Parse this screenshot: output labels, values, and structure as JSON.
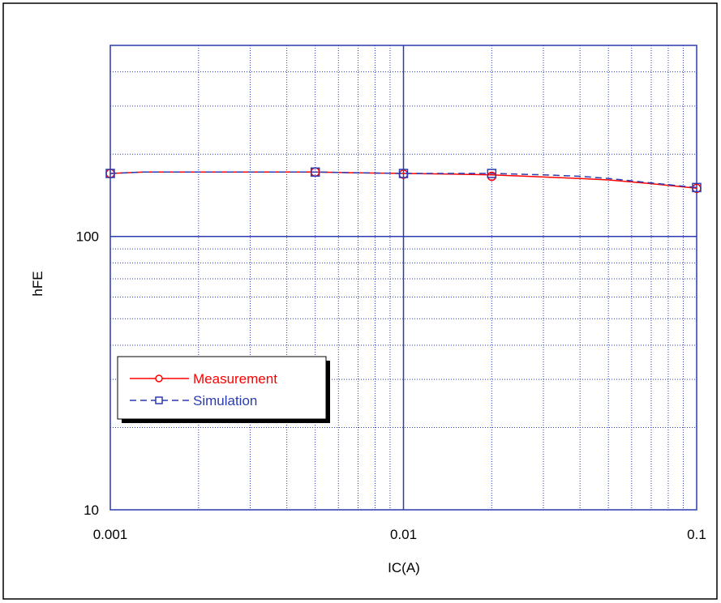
{
  "chart_data": {
    "type": "line",
    "title": "",
    "xlabel": "IC(A)",
    "ylabel": "hFE",
    "x_scale": "log",
    "y_scale": "log",
    "xlim": [
      0.001,
      0.1
    ],
    "ylim": [
      10,
      500
    ],
    "grid": true,
    "legend_position": "left-middle",
    "x_ticks": [
      {
        "value": 0.001,
        "label": "0.001"
      },
      {
        "value": 0.01,
        "label": "0.01"
      },
      {
        "value": 0.1,
        "label": "0.1"
      }
    ],
    "y_ticks": [
      {
        "value": 10,
        "label": "10"
      },
      {
        "value": 100,
        "label": "100"
      }
    ],
    "colors": {
      "frame": "#000000",
      "plot_border": "#2b3bb0",
      "grid": "#2b3bb0",
      "measurement": "#ff0000",
      "simulation": "#2b3bb0"
    },
    "series": [
      {
        "name": "Measurement",
        "color": "#ff0000",
        "marker": "circle",
        "dashed": false,
        "x": [
          0.001,
          0.005,
          0.01,
          0.02,
          0.1
        ],
        "y": [
          170,
          172,
          169,
          166,
          150
        ]
      },
      {
        "name": "Simulation",
        "color": "#2b3bb0",
        "marker": "square",
        "dashed": false,
        "x": [
          0.001,
          0.005,
          0.01,
          0.02,
          0.1
        ],
        "y": [
          170,
          172,
          170,
          170,
          151
        ]
      }
    ],
    "curves": [
      {
        "series": "Measurement",
        "dashed": false,
        "x": [
          0.001,
          0.0013,
          0.002,
          0.003,
          0.005,
          0.007,
          0.01,
          0.015,
          0.02,
          0.03,
          0.04,
          0.05,
          0.07,
          0.1
        ],
        "y": [
          170,
          172,
          172,
          172,
          172,
          171,
          170,
          169,
          168,
          165,
          163,
          161,
          156,
          150
        ]
      },
      {
        "series": "Simulation",
        "dashed": true,
        "x": [
          0.001,
          0.0013,
          0.002,
          0.003,
          0.005,
          0.007,
          0.01,
          0.015,
          0.02,
          0.03,
          0.04,
          0.05,
          0.07,
          0.1
        ],
        "y": [
          170,
          172,
          172,
          172,
          172,
          171,
          170,
          170,
          170,
          168,
          166,
          163,
          157,
          151
        ]
      }
    ]
  }
}
